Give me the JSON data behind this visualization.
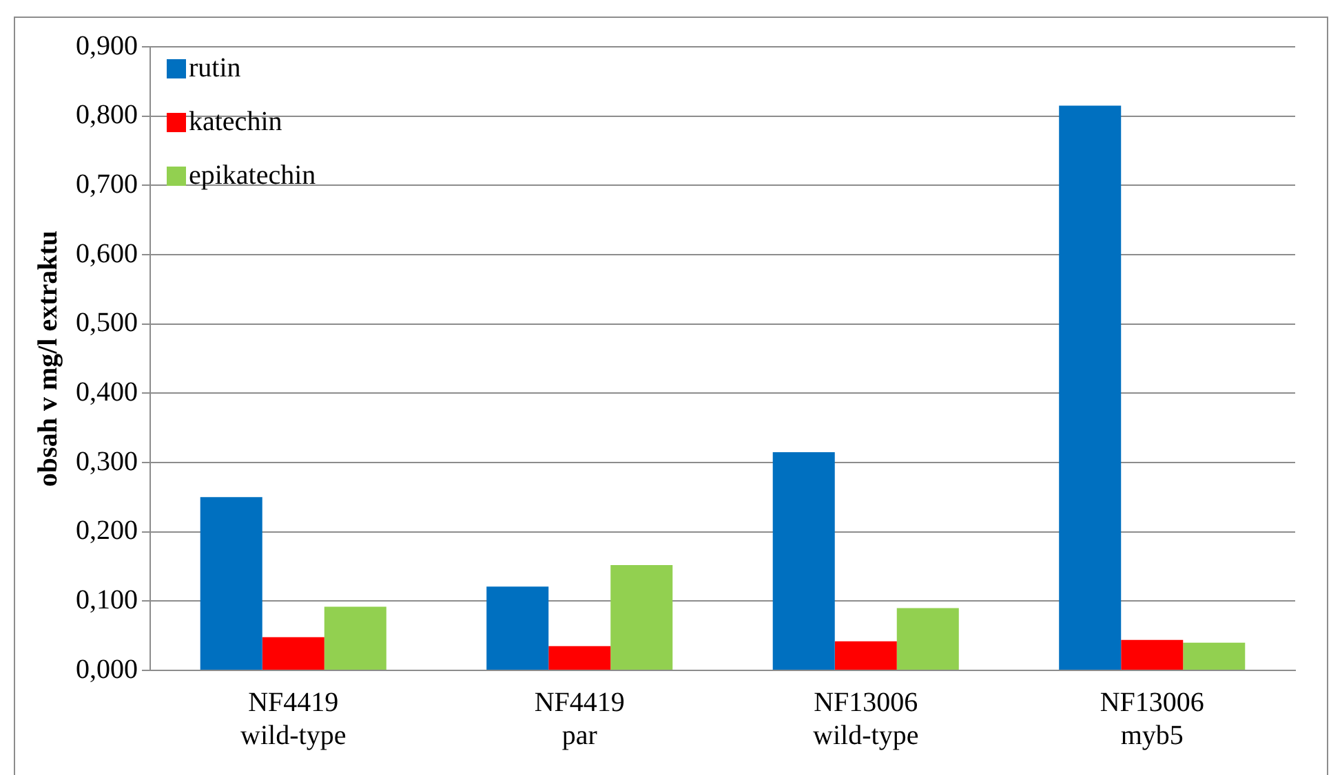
{
  "chart_data": {
    "type": "bar",
    "ylabel": "obsah v mg/l extraktu",
    "categories": [
      "NF4419 wild-type",
      "NF4419 par",
      "NF13006 wild-type",
      "NF13006 myb5"
    ],
    "series": [
      {
        "name": "rutin",
        "color": "#0070c0",
        "values": [
          0.25,
          0.121,
          0.315,
          0.815
        ]
      },
      {
        "name": "katechin",
        "color": "#ff0000",
        "values": [
          0.048,
          0.035,
          0.042,
          0.044
        ]
      },
      {
        "name": "epikatechin",
        "color": "#92d050",
        "values": [
          0.092,
          0.152,
          0.09,
          0.04
        ]
      }
    ],
    "ylim": [
      0,
      0.9
    ],
    "yticks": [
      {
        "value": 0,
        "label": "0,000"
      },
      {
        "value": 0.1,
        "label": "0,100"
      },
      {
        "value": 0.2,
        "label": "0,200"
      },
      {
        "value": 0.3,
        "label": "0,300"
      },
      {
        "value": 0.4,
        "label": "0,400"
      },
      {
        "value": 0.5,
        "label": "0,500"
      },
      {
        "value": 0.6,
        "label": "0,600"
      },
      {
        "value": 0.7,
        "label": "0,700"
      },
      {
        "value": 0.8,
        "label": "0,800"
      },
      {
        "value": 0.9,
        "label": "0,900"
      }
    ],
    "grid": "y",
    "legend": "top left"
  }
}
